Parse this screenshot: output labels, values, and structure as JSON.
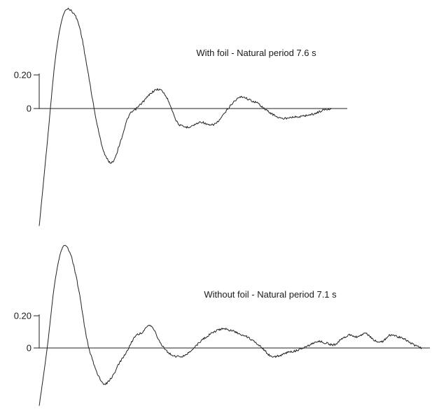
{
  "chart_data": [
    {
      "type": "line",
      "title": "With foil - Natural period 7.6 s",
      "xlabel": "",
      "ylabel": "",
      "grid": false,
      "yticks": [
        {
          "value": 0.2,
          "label": "0.20"
        },
        {
          "value": 0,
          "label": "0"
        }
      ],
      "ylim": [
        -0.7,
        0.59
      ],
      "xlim": [
        0,
        38
      ],
      "series": [
        {
          "x": [
            0,
            1,
            2,
            3,
            4,
            5,
            6,
            7,
            8,
            9,
            10,
            11,
            12,
            13,
            14,
            15,
            16,
            17,
            18,
            19,
            20,
            21,
            22,
            23,
            24,
            25,
            26,
            27,
            28,
            29,
            30,
            31,
            32,
            33,
            34,
            35,
            36
          ],
          "values": [
            -0.7,
            -0.2,
            0.3,
            0.56,
            0.58,
            0.48,
            0.22,
            -0.06,
            -0.26,
            -0.32,
            -0.2,
            -0.05,
            0.0,
            0.05,
            0.1,
            0.11,
            0.04,
            -0.08,
            -0.11,
            -0.1,
            -0.08,
            -0.1,
            -0.08,
            -0.02,
            0.04,
            0.07,
            0.05,
            0.03,
            -0.01,
            -0.04,
            -0.06,
            -0.05,
            -0.05,
            -0.04,
            -0.03,
            -0.01,
            0.0
          ]
        }
      ]
    },
    {
      "type": "line",
      "title": "Without foil - Natural period 7.1 s",
      "xlabel": "",
      "ylabel": "",
      "grid": false,
      "yticks": [
        {
          "value": 0.2,
          "label": "0.20"
        },
        {
          "value": 0,
          "label": "0"
        }
      ],
      "ylim": [
        -0.36,
        0.66
      ],
      "xlim": [
        0,
        49
      ],
      "series": [
        {
          "x": [
            0,
            1,
            2,
            3,
            4,
            5,
            6,
            7,
            8,
            9,
            10,
            11,
            12,
            13,
            14,
            15,
            16,
            17,
            18,
            19,
            20,
            21,
            22,
            23,
            24,
            25,
            26,
            27,
            28,
            29,
            30,
            31,
            32,
            33,
            34,
            35,
            36,
            37,
            38,
            39,
            40,
            41,
            42,
            43,
            44,
            45,
            46,
            47,
            48
          ],
          "values": [
            -0.36,
            0.0,
            0.42,
            0.63,
            0.57,
            0.35,
            0.05,
            -0.12,
            -0.22,
            -0.19,
            -0.1,
            -0.02,
            0.07,
            0.1,
            0.14,
            0.05,
            -0.02,
            -0.05,
            -0.05,
            -0.02,
            0.03,
            0.07,
            0.1,
            0.12,
            0.11,
            0.09,
            0.07,
            0.04,
            0.0,
            -0.05,
            -0.05,
            -0.03,
            -0.02,
            0.0,
            0.02,
            0.04,
            0.03,
            0.02,
            0.06,
            0.08,
            0.07,
            0.09,
            0.05,
            0.04,
            0.08,
            0.07,
            0.05,
            0.02,
            0.0
          ]
        }
      ]
    }
  ]
}
